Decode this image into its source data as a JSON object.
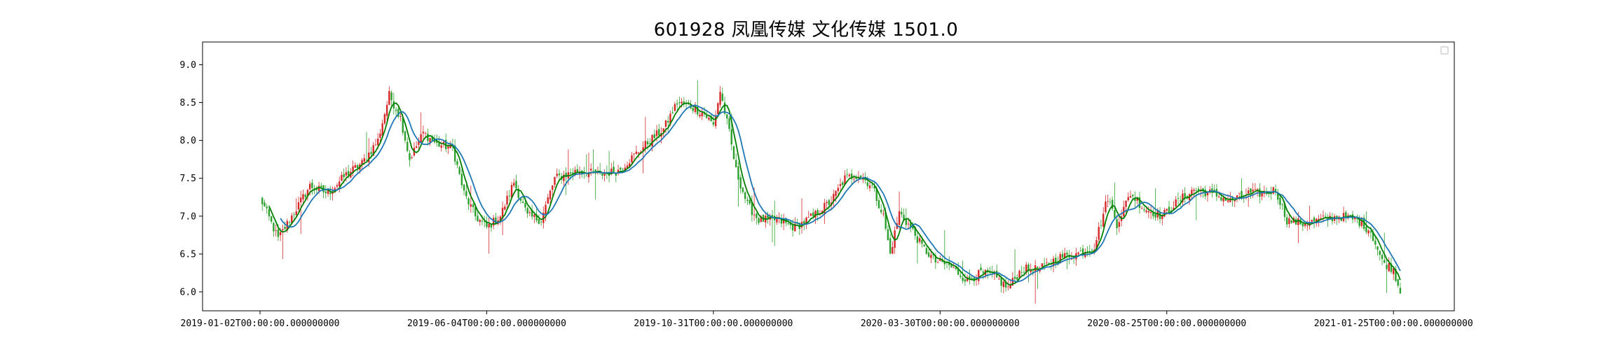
{
  "chart_data": {
    "type": "candlestick",
    "title": "601928 凤凰传媒 文化传媒 1501.0",
    "ylim": [
      5.75,
      9.3
    ],
    "y_ticks": [
      6.0,
      6.5,
      7.0,
      7.5,
      8.0,
      8.5,
      9.0
    ],
    "y_tick_labels": [
      "6.0",
      "6.5",
      "7.0",
      "7.5",
      "8.0",
      "8.5",
      "9.0"
    ],
    "x_tick_labels": [
      "2019-01-02T00:00:00.000000000",
      "2019-06-04T00:00:00.000000000",
      "2019-10-31T00:00:00.000000000",
      "2020-03-30T00:00:00.000000000",
      "2020-08-25T00:00:00.000000000",
      "2021-01-25T00:00:00.000000000"
    ],
    "x_tick_index": [
      0,
      100,
      200,
      300,
      400,
      500
    ],
    "n_days": 503,
    "up_color": "#d62728",
    "down_color": "#2ca02c",
    "ma_color": "#1f77b4",
    "ma_line_color": "#008000",
    "legend": "top-right (empty)",
    "grid": false,
    "close_keypoints": [
      [
        0,
        7.25
      ],
      [
        8,
        6.7
      ],
      [
        15,
        7.05
      ],
      [
        22,
        7.4
      ],
      [
        30,
        7.3
      ],
      [
        38,
        7.55
      ],
      [
        45,
        7.7
      ],
      [
        52,
        8.0
      ],
      [
        57,
        8.6
      ],
      [
        62,
        8.3
      ],
      [
        66,
        7.75
      ],
      [
        72,
        8.1
      ],
      [
        78,
        7.95
      ],
      [
        85,
        7.9
      ],
      [
        90,
        7.3
      ],
      [
        95,
        7.0
      ],
      [
        100,
        6.85
      ],
      [
        106,
        7.0
      ],
      [
        112,
        7.45
      ],
      [
        118,
        7.0
      ],
      [
        124,
        6.95
      ],
      [
        130,
        7.5
      ],
      [
        140,
        7.6
      ],
      [
        150,
        7.55
      ],
      [
        158,
        7.6
      ],
      [
        165,
        7.8
      ],
      [
        172,
        8.0
      ],
      [
        178,
        8.15
      ],
      [
        184,
        8.5
      ],
      [
        190,
        8.45
      ],
      [
        196,
        8.35
      ],
      [
        200,
        8.2
      ],
      [
        203,
        8.65
      ],
      [
        207,
        8.1
      ],
      [
        210,
        7.6
      ],
      [
        215,
        7.15
      ],
      [
        220,
        6.95
      ],
      [
        228,
        6.95
      ],
      [
        236,
        6.85
      ],
      [
        244,
        7.0
      ],
      [
        252,
        7.2
      ],
      [
        258,
        7.5
      ],
      [
        264,
        7.55
      ],
      [
        270,
        7.4
      ],
      [
        275,
        7.0
      ],
      [
        278,
        6.5
      ],
      [
        282,
        7.05
      ],
      [
        287,
        6.85
      ],
      [
        292,
        6.6
      ],
      [
        298,
        6.4
      ],
      [
        304,
        6.35
      ],
      [
        312,
        6.15
      ],
      [
        318,
        6.25
      ],
      [
        324,
        6.2
      ],
      [
        330,
        6.05
      ],
      [
        336,
        6.3
      ],
      [
        344,
        6.3
      ],
      [
        352,
        6.45
      ],
      [
        360,
        6.5
      ],
      [
        368,
        6.6
      ],
      [
        374,
        7.25
      ],
      [
        378,
        6.9
      ],
      [
        384,
        7.3
      ],
      [
        390,
        7.1
      ],
      [
        398,
        7.0
      ],
      [
        405,
        7.2
      ],
      [
        412,
        7.35
      ],
      [
        420,
        7.3
      ],
      [
        428,
        7.2
      ],
      [
        436,
        7.3
      ],
      [
        442,
        7.3
      ],
      [
        448,
        7.35
      ],
      [
        453,
        6.95
      ],
      [
        460,
        6.9
      ],
      [
        468,
        6.95
      ],
      [
        476,
        7.0
      ],
      [
        484,
        6.95
      ],
      [
        490,
        6.8
      ],
      [
        495,
        6.4
      ],
      [
        500,
        6.3
      ],
      [
        503,
        6.0
      ]
    ]
  }
}
